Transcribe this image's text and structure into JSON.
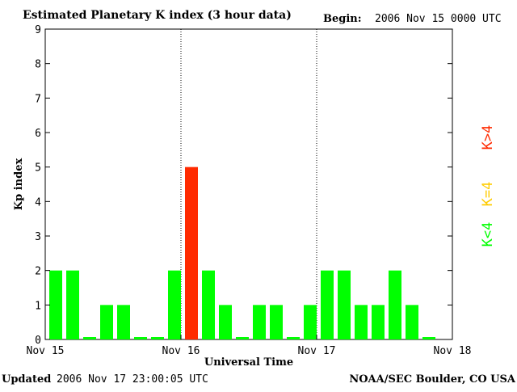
{
  "header": {
    "title": "Estimated Planetary K index (3 hour data)",
    "begin_label": "Begin:",
    "begin_value": "2006 Nov 15 0000 UTC"
  },
  "footer": {
    "updated_label": "Updated",
    "updated_value": "2006 Nov 17 23:00:05 UTC",
    "source": "NOAA/SEC Boulder, CO USA"
  },
  "legend": {
    "high": "K>4",
    "equal": "K=4",
    "low": "K<4"
  },
  "colors": {
    "low": "#00ff00",
    "equal": "#ffcc00",
    "high": "#ff2a00",
    "axis": "#000000"
  },
  "chart_data": {
    "type": "bar",
    "title": "Estimated Planetary K index (3 hour data)",
    "ylabel": "Kp index",
    "xlabel": "Universal Time",
    "ylim": [
      0,
      9
    ],
    "yticks": [
      0,
      1,
      2,
      3,
      4,
      5,
      6,
      7,
      8,
      9
    ],
    "xlim": [
      0,
      3
    ],
    "xticks": [
      {
        "value": 0,
        "label": "Nov 15"
      },
      {
        "value": 1,
        "label": "Nov 16"
      },
      {
        "value": 2,
        "label": "Nov 17"
      },
      {
        "value": 3,
        "label": "Nov 18"
      }
    ],
    "day_separators": [
      1,
      2
    ],
    "interval_hours": 3,
    "values": [
      2,
      2,
      0,
      1,
      1,
      0,
      0,
      2,
      5,
      2,
      1,
      0,
      1,
      1,
      0,
      1,
      2,
      2,
      1,
      1,
      2,
      1,
      0
    ],
    "grid": false,
    "legend_position": "right"
  }
}
